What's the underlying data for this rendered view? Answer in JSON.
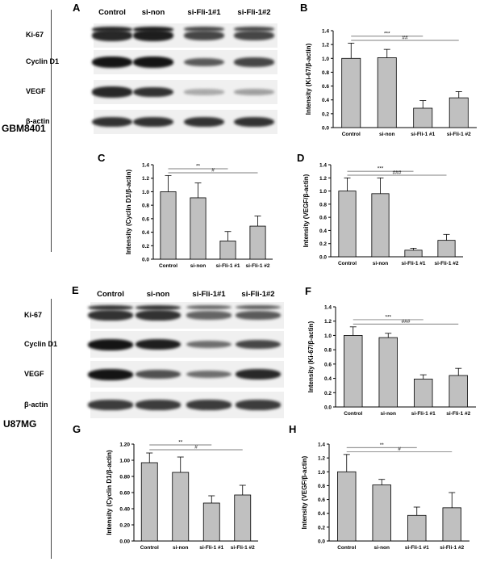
{
  "cell_lines": [
    "GBM8401",
    "U87MG"
  ],
  "panel_letters": [
    "A",
    "B",
    "C",
    "D",
    "E",
    "F",
    "G",
    "H"
  ],
  "blots": [
    {
      "letter": "A",
      "lanes": [
        "Control",
        "si-non",
        "si-Fli-1#1",
        "si-Fli-1#2"
      ],
      "rows": [
        {
          "label": "Ki-67",
          "intensity": [
            0.9,
            0.95,
            0.75,
            0.75
          ]
        },
        {
          "label": "Cyclin D1",
          "intensity": [
            1.0,
            1.0,
            0.65,
            0.75
          ]
        },
        {
          "label": "VEGF",
          "intensity": [
            0.9,
            0.85,
            0.25,
            0.3
          ]
        },
        {
          "label": "β-actin",
          "intensity": [
            0.85,
            0.85,
            0.85,
            0.85
          ]
        }
      ]
    },
    {
      "letter": "E",
      "lanes": [
        "Control",
        "si-non",
        "si-Fli-1#1",
        "si-Fli-1#2"
      ],
      "rows": [
        {
          "label": "Ki-67",
          "intensity": [
            0.85,
            0.85,
            0.6,
            0.65
          ]
        },
        {
          "label": "Cyclin D1",
          "intensity": [
            1.0,
            0.95,
            0.55,
            0.75
          ]
        },
        {
          "label": "VEGF",
          "intensity": [
            1.0,
            0.7,
            0.55,
            0.9
          ]
        },
        {
          "label": "β-actin",
          "intensity": [
            0.8,
            0.8,
            0.8,
            0.8
          ]
        }
      ]
    }
  ],
  "chart_data": [
    {
      "letter": "B",
      "type": "bar",
      "categories": [
        "Control",
        "si-non",
        "si-Fli-1 #1",
        "si-Fli-1 #2"
      ],
      "values": [
        1.0,
        1.01,
        0.28,
        0.43
      ],
      "errors": [
        0.22,
        0.12,
        0.11,
        0.09
      ],
      "ylabel": "Intensity (Ki-67/β-actin)",
      "ylim": [
        0,
        1.4
      ],
      "yticks": [
        "0.0",
        "0.2",
        "0.4",
        "0.6",
        "0.8",
        "1.0",
        "1.2",
        "1.4"
      ],
      "sig": [
        {
          "label": "***",
          "from": 0,
          "to": 2
        },
        {
          "label": "##",
          "from": 0,
          "to": 3
        }
      ]
    },
    {
      "letter": "C",
      "type": "bar",
      "categories": [
        "Control",
        "si-non",
        "si-Fli-1 #1",
        "si-Fli-1 #2"
      ],
      "values": [
        1.0,
        0.91,
        0.27,
        0.49
      ],
      "errors": [
        0.24,
        0.22,
        0.14,
        0.15
      ],
      "ylabel": "Intensity (Cyclin D1/β-actin)",
      "ylim": [
        0,
        1.4
      ],
      "yticks": [
        "0.0",
        "0.2",
        "0.4",
        "0.6",
        "0.8",
        "1.0",
        "1.2",
        "1.4"
      ],
      "sig": [
        {
          "label": "**",
          "from": 0,
          "to": 2
        },
        {
          "label": "#",
          "from": 0,
          "to": 3
        }
      ]
    },
    {
      "letter": "D",
      "type": "bar",
      "categories": [
        "Control",
        "si-non",
        "si-Fli-1 #1",
        "si-Fli-1 #2"
      ],
      "values": [
        1.0,
        0.96,
        0.1,
        0.25
      ],
      "errors": [
        0.2,
        0.24,
        0.03,
        0.09
      ],
      "ylabel": "Intensity (VEGF/β-actin)",
      "ylim": [
        0,
        1.4
      ],
      "yticks": [
        "0.0",
        "0.2",
        "0.4",
        "0.6",
        "0.8",
        "1.0",
        "1.2",
        "1.4"
      ],
      "sig": [
        {
          "label": "***",
          "from": 0,
          "to": 2
        },
        {
          "label": "###",
          "from": 0,
          "to": 3
        }
      ]
    },
    {
      "letter": "F",
      "type": "bar",
      "categories": [
        "Control",
        "si-non",
        "si-Fli-1 #1",
        "si-Fli-1 #2"
      ],
      "values": [
        1.0,
        0.97,
        0.39,
        0.44
      ],
      "errors": [
        0.12,
        0.06,
        0.06,
        0.1
      ],
      "ylabel": "Intensity (Ki-67/β-actin)",
      "ylim": [
        0,
        1.4
      ],
      "yticks": [
        "0.0",
        "0.2",
        "0.4",
        "0.6",
        "0.8",
        "1.0",
        "1.2",
        "1.4"
      ],
      "sig": [
        {
          "label": "***",
          "from": 0,
          "to": 2
        },
        {
          "label": "###",
          "from": 0,
          "to": 3
        }
      ]
    },
    {
      "letter": "G",
      "type": "bar",
      "categories": [
        "Control",
        "si-non",
        "si-Fli-1 #1",
        "si-Fli-1 #2"
      ],
      "values": [
        0.97,
        0.85,
        0.47,
        0.57
      ],
      "errors": [
        0.12,
        0.19,
        0.09,
        0.12
      ],
      "ylabel": "Intensity (Cyclin D1/β-actin)",
      "ylim": [
        0,
        1.2
      ],
      "yticks": [
        "0.00",
        "0.20",
        "0.40",
        "0.60",
        "0.80",
        "1.00",
        "1.20"
      ],
      "sig": [
        {
          "label": "**",
          "from": 0,
          "to": 2
        },
        {
          "label": "#",
          "from": 0,
          "to": 3
        }
      ]
    },
    {
      "letter": "H",
      "type": "bar",
      "categories": [
        "Control",
        "si-non",
        "si-Fli-1 #1",
        "si-Fli-1 #2"
      ],
      "values": [
        1.0,
        0.81,
        0.37,
        0.48
      ],
      "errors": [
        0.25,
        0.08,
        0.12,
        0.22
      ],
      "ylabel": "Intensity (VEGF/β-actin)",
      "ylim": [
        0,
        1.4
      ],
      "yticks": [
        "0.0",
        "0.2",
        "0.4",
        "0.6",
        "0.8",
        "1.0",
        "1.2",
        "1.4"
      ],
      "sig": [
        {
          "label": "**",
          "from": 0,
          "to": 2
        },
        {
          "label": "#",
          "from": 0,
          "to": 3
        }
      ]
    }
  ]
}
